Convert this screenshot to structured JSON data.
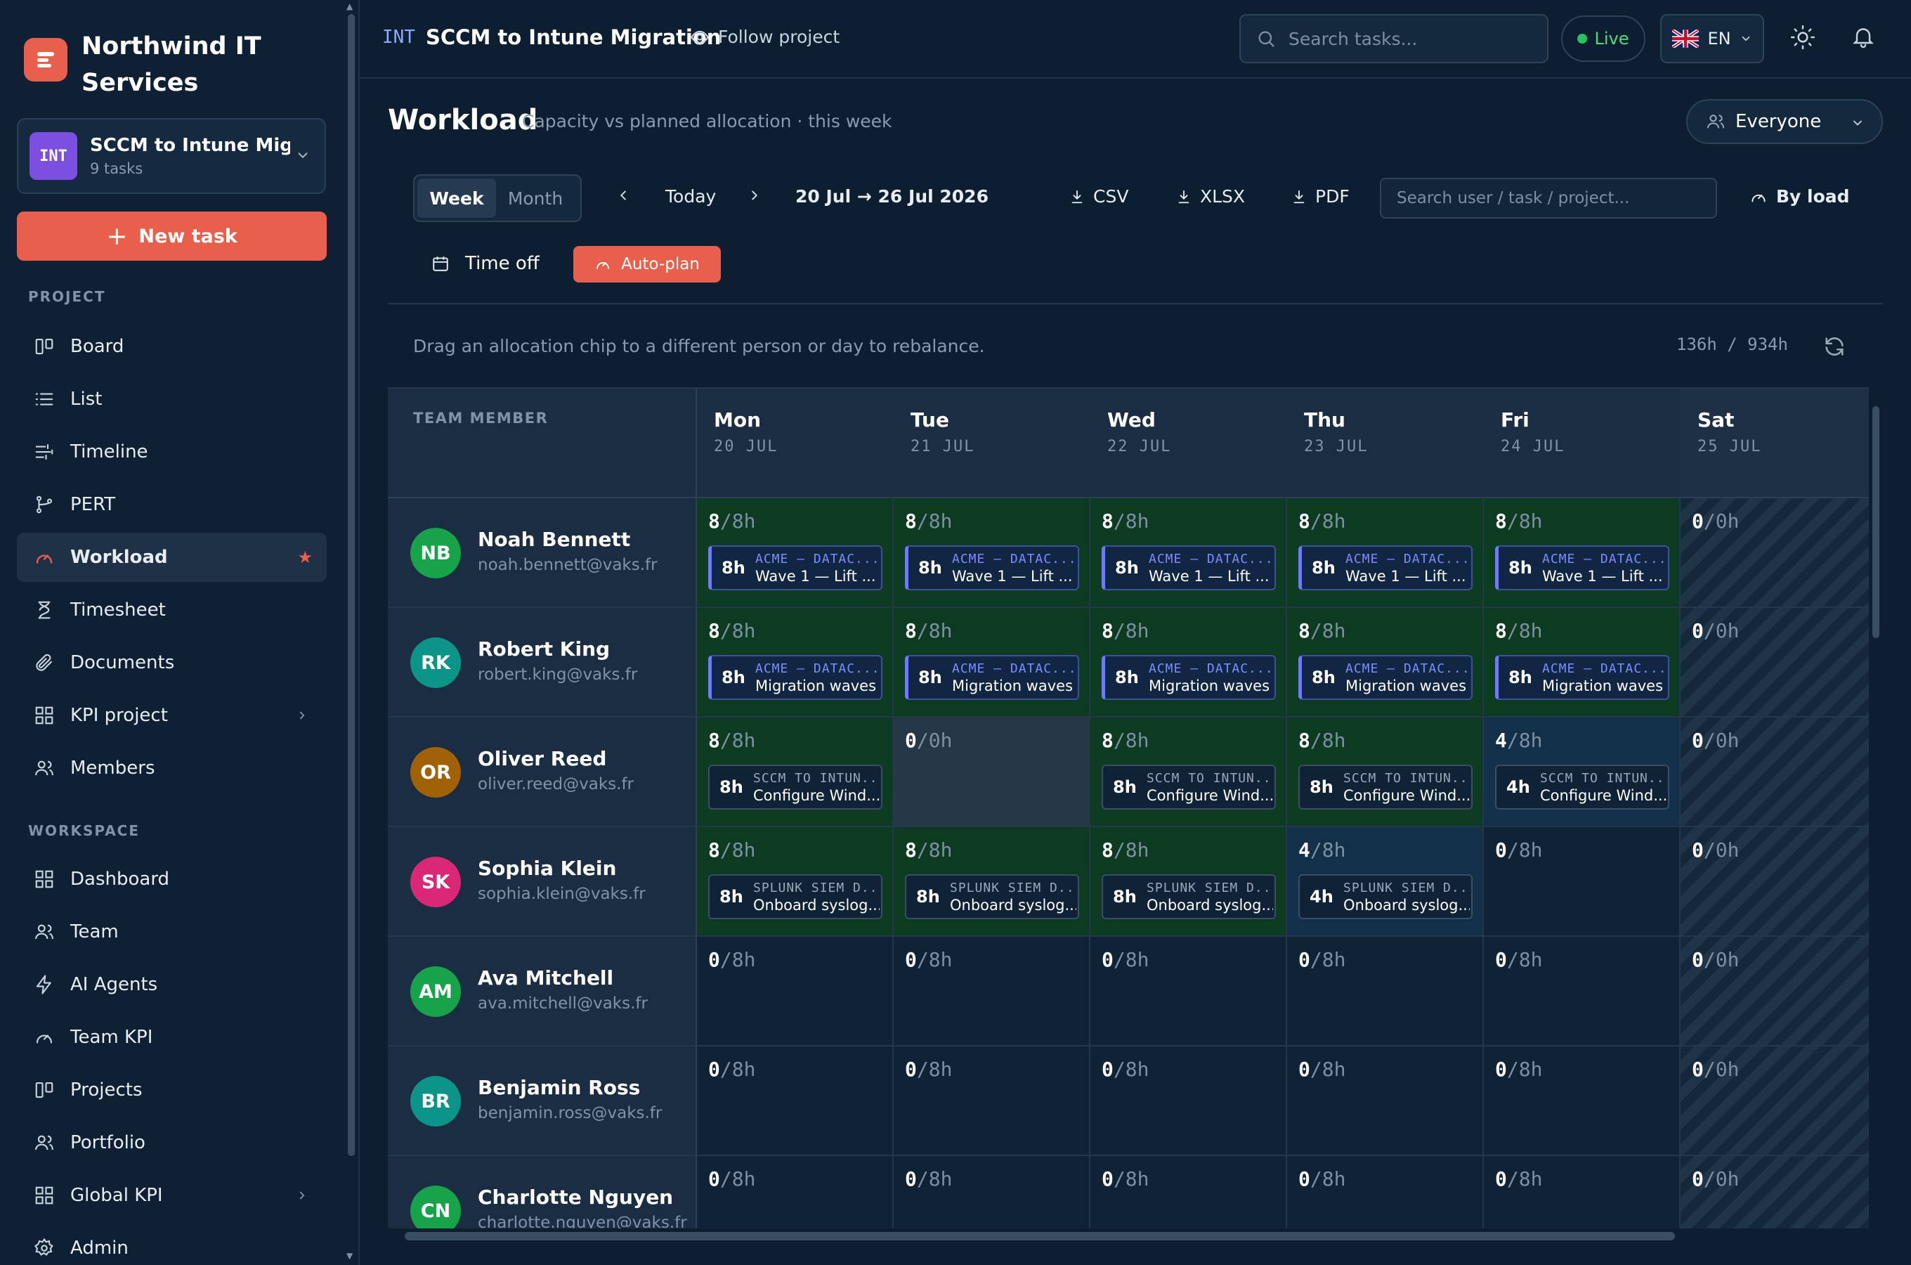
{
  "brand": {
    "name": "Northwind IT Services"
  },
  "project": {
    "code": "INT",
    "name": "SCCM to Intune Mig...",
    "task_count": "9 tasks"
  },
  "new_task_label": "New task",
  "sidebar": {
    "project_heading": "PROJECT",
    "project_items": [
      {
        "label": "Board",
        "icon": "board-icon"
      },
      {
        "label": "List",
        "icon": "list-icon"
      },
      {
        "label": "Timeline",
        "icon": "timeline-icon"
      },
      {
        "label": "PERT",
        "icon": "pert-icon"
      },
      {
        "label": "Workload",
        "icon": "gauge-icon",
        "active": true
      },
      {
        "label": "Timesheet",
        "icon": "hourglass-icon"
      },
      {
        "label": "Documents",
        "icon": "paperclip-icon"
      },
      {
        "label": "KPI project",
        "icon": "grid-icon"
      },
      {
        "label": "Members",
        "icon": "users-icon"
      }
    ],
    "workspace_heading": "WORKSPACE",
    "workspace_items": [
      {
        "label": "Dashboard",
        "icon": "grid-icon"
      },
      {
        "label": "Team",
        "icon": "users-icon"
      },
      {
        "label": "AI Agents",
        "icon": "bolt-icon"
      },
      {
        "label": "Team KPI",
        "icon": "gauge-icon"
      },
      {
        "label": "Projects",
        "icon": "board-icon"
      },
      {
        "label": "Portfolio",
        "icon": "users-icon"
      },
      {
        "label": "Global KPI",
        "icon": "grid-icon"
      },
      {
        "label": "Admin",
        "icon": "gear-icon"
      }
    ]
  },
  "topbar": {
    "code": "INT",
    "title": "SCCM to Intune Migration",
    "follow_label": "Follow project",
    "search_placeholder": "Search tasks...",
    "live_label": "Live",
    "lang": "EN"
  },
  "page": {
    "title": "Workload",
    "subtitle": "Capacity vs planned allocation · this week",
    "filter": "Everyone"
  },
  "toolbar": {
    "week": "Week",
    "month": "Month",
    "today": "Today",
    "range": "20 Jul → 26 Jul 2026",
    "csv": "CSV",
    "xlsx": "XLSX",
    "pdf": "PDF",
    "search_placeholder": "Search user / task / project...",
    "sort": "By load",
    "time_off": "Time off",
    "auto_plan": "Auto-plan"
  },
  "hint": "Drag an allocation chip to a different person or day to rebalance.",
  "total": "136h  /  934h",
  "grid": {
    "member_header": "TEAM MEMBER",
    "days": [
      {
        "name": "Mon",
        "date": "20 JUL"
      },
      {
        "name": "Tue",
        "date": "21 JUL"
      },
      {
        "name": "Wed",
        "date": "22 JUL"
      },
      {
        "name": "Thu",
        "date": "23 JUL"
      },
      {
        "name": "Fri",
        "date": "24 JUL"
      },
      {
        "name": "Sat",
        "date": "25 JUL",
        "weekend": true
      }
    ],
    "rows": [
      {
        "initials": "NB",
        "name": "Noah Bennett",
        "email": "noah.bennett@vaks.fr",
        "color": "#16a34a",
        "cells": [
          {
            "used": "8",
            "cap": "/8h",
            "chip": {
              "hours": "8h",
              "project": "ACME — DATAC...",
              "task": "Wave 1 — Lift ...",
              "kind": "acme"
            }
          },
          {
            "used": "8",
            "cap": "/8h",
            "chip": {
              "hours": "8h",
              "project": "ACME — DATAC...",
              "task": "Wave 1 — Lift ...",
              "kind": "acme"
            }
          },
          {
            "used": "8",
            "cap": "/8h",
            "chip": {
              "hours": "8h",
              "project": "ACME — DATAC...",
              "task": "Wave 1 — Lift ...",
              "kind": "acme"
            }
          },
          {
            "used": "8",
            "cap": "/8h",
            "chip": {
              "hours": "8h",
              "project": "ACME — DATAC...",
              "task": "Wave 1 — Lift ...",
              "kind": "acme"
            }
          },
          {
            "used": "8",
            "cap": "/8h",
            "chip": {
              "hours": "8h",
              "project": "ACME — DATAC...",
              "task": "Wave 1 — Lift ...",
              "kind": "acme"
            }
          },
          {
            "used": "0",
            "cap": "/0h"
          }
        ]
      },
      {
        "initials": "RK",
        "name": "Robert King",
        "email": "robert.king@vaks.fr",
        "color": "#0d9488",
        "cells": [
          {
            "used": "8",
            "cap": "/8h",
            "chip": {
              "hours": "8h",
              "project": "ACME — DATAC...",
              "task": "Migration waves",
              "kind": "acme"
            }
          },
          {
            "used": "8",
            "cap": "/8h",
            "chip": {
              "hours": "8h",
              "project": "ACME — DATAC...",
              "task": "Migration waves",
              "kind": "acme"
            }
          },
          {
            "used": "8",
            "cap": "/8h",
            "chip": {
              "hours": "8h",
              "project": "ACME — DATAC...",
              "task": "Migration waves",
              "kind": "acme"
            }
          },
          {
            "used": "8",
            "cap": "/8h",
            "chip": {
              "hours": "8h",
              "project": "ACME — DATAC...",
              "task": "Migration waves",
              "kind": "acme"
            }
          },
          {
            "used": "8",
            "cap": "/8h",
            "chip": {
              "hours": "8h",
              "project": "ACME — DATAC...",
              "task": "Migration waves",
              "kind": "acme"
            }
          },
          {
            "used": "0",
            "cap": "/0h"
          }
        ]
      },
      {
        "initials": "OR",
        "name": "Oliver Reed",
        "email": "oliver.reed@vaks.fr",
        "color": "#a16207",
        "cells": [
          {
            "used": "8",
            "cap": "/8h",
            "chip": {
              "hours": "8h",
              "project": "SCCM TO INTUN...",
              "task": "Configure Wind...",
              "kind": "int"
            }
          },
          {
            "used": "0",
            "cap": "/0h",
            "off": true
          },
          {
            "used": "8",
            "cap": "/8h",
            "chip": {
              "hours": "8h",
              "project": "SCCM TO INTUN...",
              "task": "Configure Wind...",
              "kind": "int"
            }
          },
          {
            "used": "8",
            "cap": "/8h",
            "chip": {
              "hours": "8h",
              "project": "SCCM TO INTUN...",
              "task": "Configure Wind...",
              "kind": "int"
            }
          },
          {
            "used": "4",
            "cap": "/8h",
            "chip": {
              "hours": "4h",
              "project": "SCCM TO INTUN...",
              "task": "Configure Wind...",
              "kind": "int"
            }
          },
          {
            "used": "0",
            "cap": "/0h"
          }
        ]
      },
      {
        "initials": "SK",
        "name": "Sophia Klein",
        "email": "sophia.klein@vaks.fr",
        "color": "#db2777",
        "cells": [
          {
            "used": "8",
            "cap": "/8h",
            "chip": {
              "hours": "8h",
              "project": "SPLUNK SIEM D...",
              "task": "Onboard syslog...",
              "kind": "int"
            }
          },
          {
            "used": "8",
            "cap": "/8h",
            "chip": {
              "hours": "8h",
              "project": "SPLUNK SIEM D...",
              "task": "Onboard syslog...",
              "kind": "int"
            }
          },
          {
            "used": "8",
            "cap": "/8h",
            "chip": {
              "hours": "8h",
              "project": "SPLUNK SIEM D...",
              "task": "Onboard syslog...",
              "kind": "int"
            }
          },
          {
            "used": "4",
            "cap": "/8h",
            "chip": {
              "hours": "4h",
              "project": "SPLUNK SIEM D...",
              "task": "Onboard syslog...",
              "kind": "int"
            }
          },
          {
            "used": "0",
            "cap": "/8h"
          },
          {
            "used": "0",
            "cap": "/0h"
          }
        ]
      },
      {
        "initials": "AM",
        "name": "Ava Mitchell",
        "email": "ava.mitchell@vaks.fr",
        "color": "#16a34a",
        "cells": [
          {
            "used": "0",
            "cap": "/8h"
          },
          {
            "used": "0",
            "cap": "/8h"
          },
          {
            "used": "0",
            "cap": "/8h"
          },
          {
            "used": "0",
            "cap": "/8h"
          },
          {
            "used": "0",
            "cap": "/8h"
          },
          {
            "used": "0",
            "cap": "/0h"
          }
        ]
      },
      {
        "initials": "BR",
        "name": "Benjamin Ross",
        "email": "benjamin.ross@vaks.fr",
        "color": "#0d9488",
        "cells": [
          {
            "used": "0",
            "cap": "/8h"
          },
          {
            "used": "0",
            "cap": "/8h"
          },
          {
            "used": "0",
            "cap": "/8h"
          },
          {
            "used": "0",
            "cap": "/8h"
          },
          {
            "used": "0",
            "cap": "/8h"
          },
          {
            "used": "0",
            "cap": "/0h"
          }
        ]
      },
      {
        "initials": "CN",
        "name": "Charlotte Nguyen",
        "email": "charlotte.nguyen@vaks.fr",
        "color": "#16a34a",
        "cells": [
          {
            "used": "0",
            "cap": "/8h"
          },
          {
            "used": "0",
            "cap": "/8h"
          },
          {
            "used": "0",
            "cap": "/8h"
          },
          {
            "used": "0",
            "cap": "/8h"
          },
          {
            "used": "0",
            "cap": "/8h"
          },
          {
            "used": "0",
            "cap": "/0h"
          }
        ]
      }
    ]
  }
}
